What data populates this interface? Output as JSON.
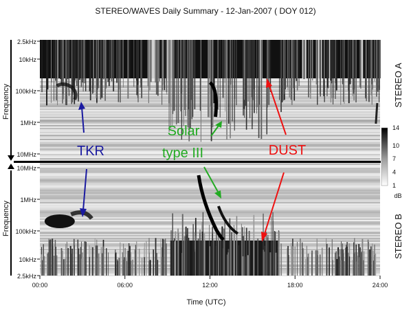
{
  "title": "STEREO/WAVES Daily Summary - 12-Jan-2007 ( DOY 012)",
  "chart_data": [
    {
      "type": "heatmap",
      "panel": "STEREO A",
      "ylabel": "Frequency",
      "y_scale": "log",
      "y_direction": "frequency decreasing downward",
      "y_ticks": [
        "2.5kHz",
        "10kHz",
        "100kHz",
        "1MHz",
        "10MHz"
      ],
      "x_range_hours": [
        0,
        24
      ],
      "features": {
        "dust_spikes": "dense broadband vertical spikes at low frequencies, strongest ~09:00-17:00 UTC",
        "tkr": "bright band ~100 kHz near 01:30-03:00 UTC",
        "type_iii_burst": "bright drifting arc ~12:00-13:00 UTC"
      }
    },
    {
      "type": "heatmap",
      "panel": "STEREO B",
      "ylabel": "Frequency",
      "y_scale": "log",
      "y_direction": "frequency increasing upward",
      "y_ticks": [
        "10MHz",
        "1MHz",
        "100kHz",
        "10kHz",
        "2.5kHz"
      ],
      "x_range_hours": [
        0,
        24
      ],
      "features": {
        "dust_spikes": "dense vertical spikes at low frequencies, ~09:00-17:00 UTC",
        "tkr": "bright blob ~100 kHz near 00:30-02:00 UTC",
        "type_iii_burst": "bright drifting arc ~12:00-13:30 UTC"
      }
    }
  ],
  "x_axis": {
    "label": "Time (UTC)",
    "ticks": [
      "00:00",
      "06:00",
      "12:00",
      "18:00",
      "24:00"
    ],
    "tick_hours": [
      0,
      6,
      12,
      18,
      24
    ]
  },
  "colorbar": {
    "unit": "dB",
    "ticks": [
      {
        "label": "14",
        "value": 14
      },
      {
        "label": "10",
        "value": 10
      },
      {
        "label": "7",
        "value": 7
      },
      {
        "label": "4",
        "value": 4
      },
      {
        "label": "1",
        "value": 1
      }
    ],
    "range": [
      1,
      14
    ]
  },
  "annotations": [
    {
      "id": "tkr",
      "lines": [
        "TKR"
      ],
      "color": "#1a1aa0"
    },
    {
      "id": "solar",
      "lines": [
        "Solar",
        "type III"
      ],
      "color": "#22aa22"
    },
    {
      "id": "dust",
      "lines": [
        "DUST"
      ],
      "color": "#ee1111"
    }
  ],
  "panel_labels": {
    "stereo_a": "STEREO A",
    "stereo_b": "STEREO B"
  }
}
